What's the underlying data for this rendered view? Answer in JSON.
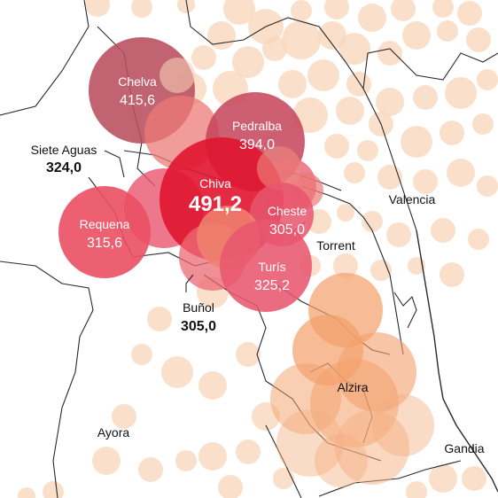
{
  "map": {
    "colors": {
      "background": "#ffffff",
      "land_line": "#222222",
      "low_rain": "#f8d5b8",
      "mid_rain": "#f3a06a",
      "high_rain": "#e8566e",
      "peak_rain": "#e0152f",
      "dark_rain": "#b5485a"
    }
  },
  "bubbles": [
    {
      "id": "chelva",
      "name": "Chelva",
      "value": "415,6"
    },
    {
      "id": "pedralba",
      "name": "Pedralba",
      "value": "394,0"
    },
    {
      "id": "chiva",
      "name": "Chiva",
      "value": "491,2"
    },
    {
      "id": "cheste",
      "name": "Cheste",
      "value": "305,0"
    },
    {
      "id": "requena",
      "name": "Requena",
      "value": "315,6"
    },
    {
      "id": "turis",
      "name": "Turís",
      "value": "325,2"
    }
  ],
  "callouts": [
    {
      "id": "siete-aguas",
      "name": "Siete Aguas",
      "value": "324,0"
    },
    {
      "id": "bunol",
      "name": "Buñol",
      "value": "305,0"
    }
  ],
  "places": [
    {
      "id": "valencia",
      "name": "Valencia"
    },
    {
      "id": "torrent",
      "name": "Torrent"
    },
    {
      "id": "alzira",
      "name": "Alzira"
    },
    {
      "id": "ayora",
      "name": "Ayora"
    },
    {
      "id": "gandia",
      "name": "Gandia"
    }
  ]
}
